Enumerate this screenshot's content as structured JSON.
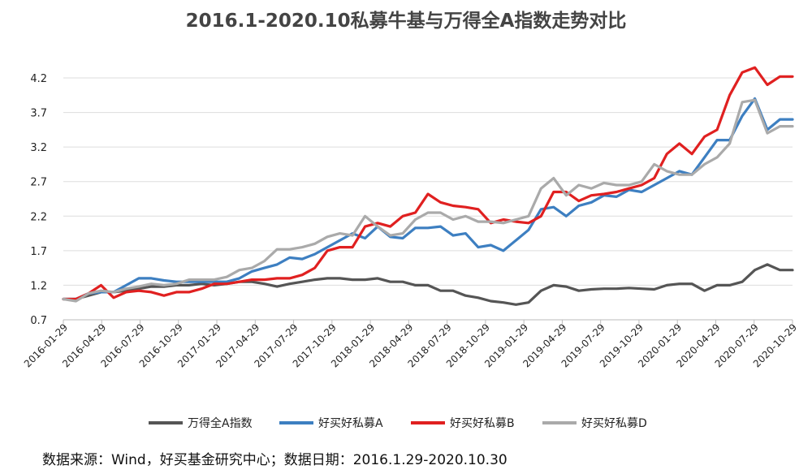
{
  "title": "2016.1-2020.10私募牛基与万得全A指数走势对比",
  "source_note": "数据来源：Wind，好买基金研究中心；数据日期：2016.1.29-2020.10.30",
  "chart_data": {
    "type": "line",
    "xlabel": "",
    "ylabel": "",
    "ylim": [
      0.7,
      4.4
    ],
    "y_ticks": [
      "0.7",
      "1.2",
      "1.7",
      "2.2",
      "2.7",
      "3.2",
      "3.7",
      "4.2"
    ],
    "x_tick_labels": [
      "2016-01-29",
      "2016-04-29",
      "2016-07-29",
      "2016-10-29",
      "2017-01-29",
      "2017-04-29",
      "2017-07-29",
      "2017-10-29",
      "2018-01-29",
      "2018-04-29",
      "2018-07-29",
      "2018-10-29",
      "2019-01-29",
      "2019-04-29",
      "2019-07-29",
      "2019-10-29",
      "2020-01-29",
      "2020-04-29",
      "2020-07-29",
      "2020-10-29"
    ],
    "grid": "horizontal",
    "legend_position": "bottom",
    "series": [
      {
        "name": "万得全A指数",
        "color": "#555555",
        "values": [
          1.0,
          1.0,
          1.05,
          1.1,
          1.1,
          1.12,
          1.15,
          1.18,
          1.18,
          1.2,
          1.2,
          1.22,
          1.2,
          1.22,
          1.25,
          1.25,
          1.22,
          1.18,
          1.22,
          1.25,
          1.28,
          1.3,
          1.3,
          1.28,
          1.28,
          1.3,
          1.25,
          1.25,
          1.2,
          1.2,
          1.12,
          1.12,
          1.05,
          1.02,
          0.97,
          0.95,
          0.92,
          0.95,
          1.12,
          1.2,
          1.18,
          1.12,
          1.14,
          1.15,
          1.15,
          1.16,
          1.15,
          1.14,
          1.2,
          1.22,
          1.22,
          1.12,
          1.2,
          1.2,
          1.25,
          1.42,
          1.5,
          1.42,
          1.42
        ]
      },
      {
        "name": "好买好私募A",
        "color": "#3d7fc1",
        "values": [
          1.0,
          1.0,
          1.08,
          1.1,
          1.1,
          1.2,
          1.3,
          1.3,
          1.27,
          1.25,
          1.25,
          1.25,
          1.25,
          1.25,
          1.3,
          1.4,
          1.45,
          1.5,
          1.6,
          1.58,
          1.65,
          1.75,
          1.85,
          1.95,
          1.88,
          2.05,
          1.9,
          1.88,
          2.03,
          2.03,
          2.05,
          1.92,
          1.95,
          1.75,
          1.78,
          1.7,
          1.85,
          2.0,
          2.3,
          2.33,
          2.2,
          2.35,
          2.4,
          2.5,
          2.48,
          2.58,
          2.55,
          2.65,
          2.75,
          2.85,
          2.8,
          3.05,
          3.3,
          3.3,
          3.65,
          3.9,
          3.45,
          3.6,
          3.6
        ]
      },
      {
        "name": "好买好私募B",
        "color": "#e02020",
        "values": [
          1.0,
          1.0,
          1.08,
          1.2,
          1.02,
          1.1,
          1.12,
          1.1,
          1.05,
          1.1,
          1.1,
          1.15,
          1.22,
          1.22,
          1.25,
          1.28,
          1.28,
          1.3,
          1.3,
          1.35,
          1.45,
          1.7,
          1.75,
          1.75,
          2.05,
          2.1,
          2.05,
          2.2,
          2.25,
          2.52,
          2.4,
          2.35,
          2.33,
          2.3,
          2.1,
          2.15,
          2.12,
          2.1,
          2.2,
          2.55,
          2.55,
          2.42,
          2.5,
          2.52,
          2.55,
          2.6,
          2.65,
          2.75,
          3.1,
          3.25,
          3.1,
          3.35,
          3.45,
          3.95,
          4.28,
          4.35,
          4.1,
          4.22,
          4.22
        ]
      },
      {
        "name": "好买好私募D",
        "color": "#aaaaaa",
        "values": [
          1.0,
          0.97,
          1.08,
          1.12,
          1.1,
          1.15,
          1.18,
          1.22,
          1.2,
          1.22,
          1.28,
          1.28,
          1.28,
          1.32,
          1.42,
          1.45,
          1.55,
          1.72,
          1.72,
          1.75,
          1.8,
          1.9,
          1.95,
          1.92,
          2.2,
          2.05,
          1.92,
          1.95,
          2.15,
          2.25,
          2.25,
          2.15,
          2.2,
          2.12,
          2.12,
          2.1,
          2.15,
          2.2,
          2.6,
          2.75,
          2.5,
          2.65,
          2.6,
          2.68,
          2.65,
          2.65,
          2.7,
          2.95,
          2.85,
          2.8,
          2.8,
          2.95,
          3.05,
          3.25,
          3.85,
          3.88,
          3.4,
          3.5,
          3.5
        ]
      }
    ]
  }
}
